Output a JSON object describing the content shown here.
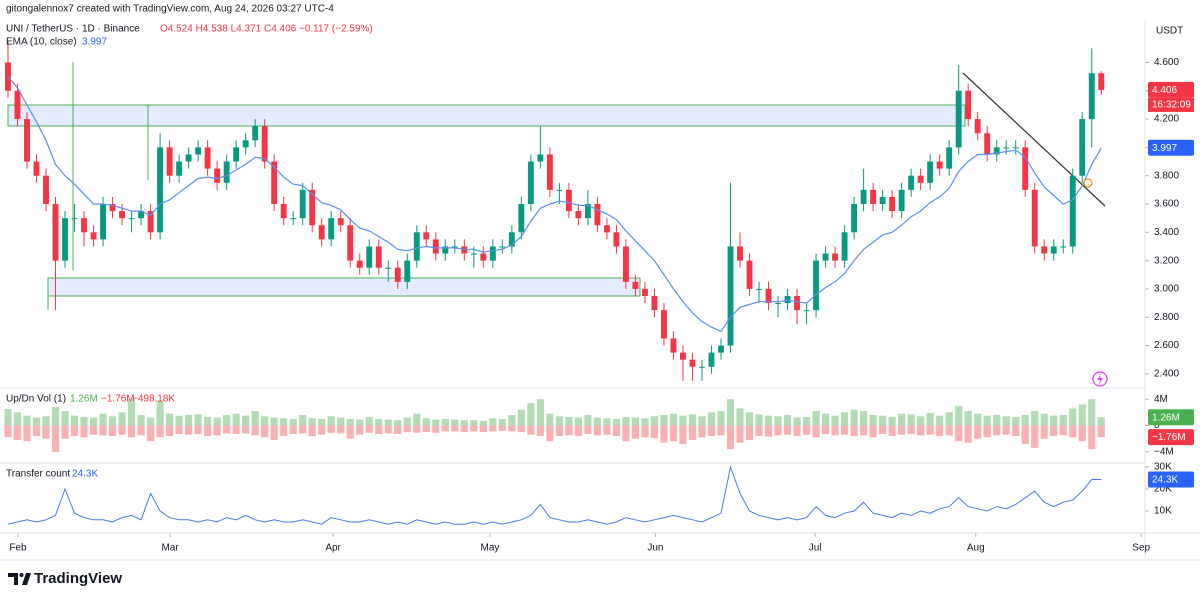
{
  "header": {
    "author_line": "gitongalennox7 created with TradingView.com, Aug 24, 2026 03:27 UTC-4",
    "symbol": "UNI / TetherUS · 1D · Binance",
    "ohlc": "O4.524 H4.538 L4.371 C4.406 −0.117 (−2.59%)",
    "ema_name": "EMA (10, close)",
    "ema_value": "3.997"
  },
  "footer": {
    "brand": "TradingView"
  },
  "chart_data": [
    {
      "type": "candlestick",
      "currency": "USDT",
      "up_color": "#089981",
      "down_color": "#f23645",
      "ema_color": "#5b8ff0",
      "xlim": [
        -0.84,
        119.6
      ],
      "xticks": [
        {
          "value": 1.05,
          "label": "Feb"
        },
        {
          "value": 17.05,
          "label": "Mar"
        },
        {
          "value": 34.2,
          "label": "Apr"
        },
        {
          "value": 50.7,
          "label": "May"
        },
        {
          "value": 68.1,
          "label": "Jun"
        },
        {
          "value": 84.9,
          "label": "Jul"
        },
        {
          "value": 101.8,
          "label": "Aug"
        },
        {
          "value": 119.2,
          "label": "Sep"
        }
      ],
      "ylim": [
        2.3,
        4.9
      ],
      "yticks": [
        {
          "value": 2.4,
          "label": "2.400"
        },
        {
          "value": 2.6,
          "label": "2.600"
        },
        {
          "value": 2.8,
          "label": "2.800"
        },
        {
          "value": 3.0,
          "label": "3.000"
        },
        {
          "value": 3.2,
          "label": "3.200"
        },
        {
          "value": 3.4,
          "label": "3.400"
        },
        {
          "value": 3.6,
          "label": "3.600"
        },
        {
          "value": 3.8,
          "label": "3.800"
        },
        {
          "value": 4.0,
          "label": "4.000"
        },
        {
          "value": 4.2,
          "label": "4.200"
        },
        {
          "value": 4.4,
          "label": "4.400"
        },
        {
          "value": 4.6,
          "label": "4.600"
        }
      ],
      "last_price": {
        "value": 4.406,
        "label": "4.406"
      },
      "countdown": "16:32:09",
      "ema_tag": {
        "value": 3.997,
        "label": "3.997"
      },
      "candles": [
        [
          4.6,
          4.75,
          4.35,
          4.4
        ],
        [
          4.4,
          4.45,
          4.15,
          4.2
        ],
        [
          4.2,
          4.25,
          3.85,
          3.9
        ],
        [
          3.9,
          3.95,
          3.75,
          3.8
        ],
        [
          3.8,
          3.85,
          3.55,
          3.6
        ],
        [
          3.6,
          3.65,
          2.85,
          3.2
        ],
        [
          3.2,
          3.55,
          3.15,
          3.5
        ],
        [
          3.5,
          3.6,
          3.4,
          3.5
        ],
        [
          3.5,
          3.55,
          3.3,
          3.4
        ],
        [
          3.4,
          3.45,
          3.3,
          3.35
        ],
        [
          3.35,
          3.65,
          3.3,
          3.6
        ],
        [
          3.6,
          3.65,
          3.5,
          3.55
        ],
        [
          3.55,
          3.6,
          3.45,
          3.5
        ],
        [
          3.5,
          3.55,
          3.4,
          3.5
        ],
        [
          3.5,
          3.6,
          3.45,
          3.55
        ],
        [
          3.55,
          3.6,
          3.35,
          3.4
        ],
        [
          3.4,
          4.1,
          3.35,
          4.0
        ],
        [
          4.0,
          4.05,
          3.75,
          3.8
        ],
        [
          3.8,
          3.95,
          3.75,
          3.9
        ],
        [
          3.9,
          4.0,
          3.85,
          3.95
        ],
        [
          3.95,
          4.05,
          3.9,
          4.0
        ],
        [
          4.0,
          4.05,
          3.8,
          3.85
        ],
        [
          3.85,
          3.9,
          3.7,
          3.75
        ],
        [
          3.75,
          3.95,
          3.7,
          3.9
        ],
        [
          3.9,
          4.05,
          3.85,
          4.0
        ],
        [
          4.0,
          4.1,
          3.95,
          4.05
        ],
        [
          4.05,
          4.2,
          4.0,
          4.15
        ],
        [
          4.15,
          4.2,
          3.85,
          3.9
        ],
        [
          3.9,
          3.95,
          3.55,
          3.6
        ],
        [
          3.6,
          3.65,
          3.45,
          3.5
        ],
        [
          3.5,
          3.55,
          3.45,
          3.5
        ],
        [
          3.5,
          3.75,
          3.45,
          3.7
        ],
        [
          3.7,
          3.75,
          3.4,
          3.45
        ],
        [
          3.45,
          3.5,
          3.3,
          3.35
        ],
        [
          3.35,
          3.55,
          3.3,
          3.5
        ],
        [
          3.5,
          3.55,
          3.4,
          3.45
        ],
        [
          3.45,
          3.5,
          3.15,
          3.2
        ],
        [
          3.2,
          3.25,
          3.1,
          3.15
        ],
        [
          3.15,
          3.35,
          3.1,
          3.3
        ],
        [
          3.3,
          3.35,
          3.1,
          3.15
        ],
        [
          3.15,
          3.2,
          3.05,
          3.15
        ],
        [
          3.15,
          3.2,
          3.0,
          3.05
        ],
        [
          3.05,
          3.25,
          3.0,
          3.2
        ],
        [
          3.2,
          3.45,
          3.15,
          3.4
        ],
        [
          3.4,
          3.45,
          3.3,
          3.35
        ],
        [
          3.35,
          3.4,
          3.2,
          3.25
        ],
        [
          3.25,
          3.35,
          3.2,
          3.3
        ],
        [
          3.3,
          3.35,
          3.25,
          3.3
        ],
        [
          3.3,
          3.35,
          3.2,
          3.25
        ],
        [
          3.25,
          3.3,
          3.15,
          3.25
        ],
        [
          3.25,
          3.3,
          3.15,
          3.2
        ],
        [
          3.2,
          3.35,
          3.15,
          3.3
        ],
        [
          3.3,
          3.35,
          3.25,
          3.3
        ],
        [
          3.3,
          3.45,
          3.25,
          3.4
        ],
        [
          3.4,
          3.65,
          3.35,
          3.6
        ],
        [
          3.6,
          3.95,
          3.55,
          3.9
        ],
        [
          3.9,
          4.15,
          3.85,
          3.95
        ],
        [
          3.95,
          4.0,
          3.65,
          3.7
        ],
        [
          3.7,
          3.75,
          3.6,
          3.7
        ],
        [
          3.7,
          3.75,
          3.5,
          3.55
        ],
        [
          3.55,
          3.6,
          3.45,
          3.5
        ],
        [
          3.5,
          3.7,
          3.45,
          3.6
        ],
        [
          3.6,
          3.65,
          3.4,
          3.45
        ],
        [
          3.45,
          3.5,
          3.35,
          3.4
        ],
        [
          3.4,
          3.45,
          3.25,
          3.3
        ],
        [
          3.3,
          3.35,
          3.0,
          3.05
        ],
        [
          3.05,
          3.1,
          2.95,
          3.0
        ],
        [
          3.0,
          3.05,
          2.9,
          2.95
        ],
        [
          2.95,
          3.0,
          2.8,
          2.85
        ],
        [
          2.85,
          2.9,
          2.6,
          2.65
        ],
        [
          2.65,
          2.7,
          2.5,
          2.55
        ],
        [
          2.55,
          2.6,
          2.35,
          2.5
        ],
        [
          2.5,
          2.55,
          2.35,
          2.45
        ],
        [
          2.45,
          2.5,
          2.35,
          2.45
        ],
        [
          2.45,
          2.6,
          2.4,
          2.55
        ],
        [
          2.55,
          2.65,
          2.5,
          2.6
        ],
        [
          2.6,
          3.75,
          2.55,
          3.3
        ],
        [
          3.3,
          3.4,
          3.15,
          3.2
        ],
        [
          3.2,
          3.25,
          2.95,
          3.0
        ],
        [
          3.0,
          3.05,
          2.9,
          3.0
        ],
        [
          3.0,
          3.05,
          2.85,
          2.9
        ],
        [
          2.9,
          2.95,
          2.8,
          2.9
        ],
        [
          2.9,
          3.0,
          2.85,
          2.95
        ],
        [
          2.95,
          3.0,
          2.75,
          2.85
        ],
        [
          2.85,
          2.9,
          2.75,
          2.85
        ],
        [
          2.85,
          3.25,
          2.8,
          3.2
        ],
        [
          3.2,
          3.3,
          3.15,
          3.25
        ],
        [
          3.25,
          3.3,
          3.15,
          3.2
        ],
        [
          3.2,
          3.45,
          3.15,
          3.4
        ],
        [
          3.4,
          3.65,
          3.35,
          3.6
        ],
        [
          3.6,
          3.85,
          3.55,
          3.7
        ],
        [
          3.7,
          3.75,
          3.55,
          3.6
        ],
        [
          3.6,
          3.7,
          3.55,
          3.65
        ],
        [
          3.65,
          3.7,
          3.5,
          3.55
        ],
        [
          3.55,
          3.75,
          3.5,
          3.7
        ],
        [
          3.7,
          3.85,
          3.65,
          3.8
        ],
        [
          3.8,
          3.85,
          3.7,
          3.75
        ],
        [
          3.75,
          3.95,
          3.7,
          3.9
        ],
        [
          3.9,
          3.95,
          3.8,
          3.85
        ],
        [
          3.85,
          4.05,
          3.8,
          4.0
        ],
        [
          4.0,
          4.58,
          3.95,
          4.4
        ],
        [
          4.4,
          4.45,
          4.15,
          4.2
        ],
        [
          4.2,
          4.25,
          4.05,
          4.1
        ],
        [
          4.1,
          4.15,
          3.9,
          3.95
        ],
        [
          3.95,
          4.05,
          3.9,
          4.0
        ],
        [
          4.0,
          4.05,
          3.95,
          4.0
        ],
        [
          4.0,
          4.05,
          3.95,
          4.0
        ],
        [
          4.0,
          4.05,
          3.65,
          3.7
        ],
        [
          3.7,
          3.75,
          3.25,
          3.3
        ],
        [
          3.3,
          3.35,
          3.2,
          3.25
        ],
        [
          3.25,
          3.35,
          3.2,
          3.3
        ],
        [
          3.3,
          3.35,
          3.25,
          3.3
        ],
        [
          3.3,
          3.85,
          3.25,
          3.8
        ],
        [
          3.8,
          4.25,
          3.75,
          4.2
        ],
        [
          4.2,
          4.7,
          4.0,
          4.524
        ],
        [
          4.524,
          4.538,
          4.371,
          4.406
        ]
      ],
      "ema": [
        4.5,
        4.42,
        4.3,
        4.18,
        4.05,
        3.88,
        3.8,
        3.74,
        3.67,
        3.6,
        3.6,
        3.59,
        3.57,
        3.55,
        3.55,
        3.52,
        3.6,
        3.63,
        3.68,
        3.73,
        3.78,
        3.79,
        3.78,
        3.8,
        3.84,
        3.88,
        3.93,
        3.92,
        3.86,
        3.79,
        3.74,
        3.73,
        3.67,
        3.61,
        3.59,
        3.56,
        3.49,
        3.43,
        3.41,
        3.37,
        3.33,
        3.28,
        3.27,
        3.29,
        3.3,
        3.29,
        3.29,
        3.29,
        3.28,
        3.28,
        3.26,
        3.27,
        3.28,
        3.31,
        3.37,
        3.48,
        3.57,
        3.6,
        3.62,
        3.61,
        3.59,
        3.59,
        3.56,
        3.53,
        3.49,
        3.41,
        3.34,
        3.27,
        3.2,
        3.1,
        3.0,
        2.91,
        2.83,
        2.77,
        2.73,
        2.7,
        2.8,
        2.87,
        2.89,
        2.91,
        2.91,
        2.91,
        2.92,
        2.91,
        2.9,
        2.96,
        3.01,
        3.05,
        3.11,
        3.2,
        3.28,
        3.33,
        3.38,
        3.4,
        3.45,
        3.51,
        3.55,
        3.61,
        3.65,
        3.71,
        3.83,
        3.9,
        3.95,
        3.95,
        3.96,
        3.97,
        3.98,
        3.93,
        3.82,
        3.72,
        3.66,
        3.6,
        3.63,
        3.73,
        3.88,
        3.997
      ]
    },
    {
      "type": "bar",
      "title": "Up/Dn Vol (1)",
      "legend_values": [
        "1.26M",
        "−1.76M",
        "−498.18K"
      ],
      "up_color": "#a5d6a7",
      "down_color": "#faa1a4",
      "ylim": [
        -5.7,
        5.7
      ],
      "yticks": [
        {
          "value": 4,
          "label": "4M"
        },
        0,
        {
          "value": -4,
          "label": "−4M"
        }
      ],
      "up_tag": {
        "value": 1.26,
        "label": "1.26M"
      },
      "down_tag": {
        "value": -1.76,
        "label": "−1.76M"
      },
      "up_values": [
        2.5,
        2.0,
        1.5,
        1.2,
        1.4,
        2.8,
        2.2,
        1.5,
        1.3,
        1.2,
        1.8,
        1.4,
        2.0,
        4.0,
        1.6,
        1.2,
        3.8,
        1.8,
        1.5,
        1.6,
        1.7,
        1.3,
        1.2,
        1.6,
        1.8,
        1.5,
        2.2,
        1.4,
        1.2,
        1.1,
        1.0,
        1.6,
        1.1,
        1.0,
        1.4,
        1.2,
        1.0,
        0.9,
        1.3,
        1.0,
        0.9,
        0.8,
        1.2,
        1.8,
        1.1,
        0.9,
        1.0,
        0.9,
        0.8,
        0.8,
        0.7,
        1.1,
        1.0,
        1.6,
        2.4,
        3.4,
        4.0,
        1.8,
        1.4,
        1.3,
        1.2,
        1.6,
        1.2,
        1.1,
        1.0,
        1.3,
        1.2,
        1.1,
        1.4,
        1.6,
        1.8,
        1.5,
        1.7,
        1.4,
        2.0,
        2.2,
        4.0,
        2.6,
        2.0,
        1.7,
        1.5,
        1.4,
        1.6,
        1.2,
        1.3,
        2.2,
        1.8,
        1.5,
        2.0,
        2.4,
        2.2,
        1.6,
        1.5,
        1.3,
        1.8,
        1.7,
        1.4,
        1.9,
        1.5,
        2.0,
        3.0,
        2.2,
        1.8,
        1.5,
        1.6,
        1.4,
        1.3,
        1.6,
        2.2,
        1.8,
        1.5,
        1.6,
        2.6,
        3.2,
        4.0,
        1.26
      ],
      "down_values": [
        -1.8,
        -2.2,
        -2.4,
        -1.6,
        -2.0,
        -4.0,
        -2.0,
        -1.6,
        -1.8,
        -1.4,
        -1.5,
        -1.6,
        -1.4,
        -1.8,
        -1.5,
        -2.4,
        -1.8,
        -1.6,
        -1.3,
        -1.4,
        -1.3,
        -1.6,
        -1.5,
        -1.2,
        -1.3,
        -1.2,
        -1.5,
        -1.8,
        -2.2,
        -1.6,
        -1.3,
        -1.2,
        -1.6,
        -1.4,
        -1.1,
        -1.2,
        -2.0,
        -1.4,
        -1.1,
        -1.3,
        -1.2,
        -1.3,
        -1.0,
        -1.1,
        -1.0,
        -1.1,
        -0.9,
        -0.9,
        -1.0,
        -0.9,
        -1.0,
        -0.9,
        -0.8,
        -0.9,
        -1.0,
        -1.4,
        -1.6,
        -2.4,
        -1.6,
        -1.5,
        -1.6,
        -1.3,
        -1.5,
        -1.4,
        -1.6,
        -2.4,
        -2.0,
        -1.8,
        -1.9,
        -2.6,
        -2.4,
        -2.8,
        -2.2,
        -1.8,
        -1.6,
        -1.5,
        -3.6,
        -2.6,
        -2.2,
        -1.6,
        -1.7,
        -1.5,
        -1.4,
        -1.6,
        -1.4,
        -1.8,
        -1.3,
        -1.5,
        -1.4,
        -1.6,
        -1.5,
        -1.8,
        -1.3,
        -1.6,
        -1.4,
        -1.3,
        -1.5,
        -1.4,
        -1.6,
        -1.5,
        -2.4,
        -2.6,
        -2.0,
        -1.8,
        -1.5,
        -1.4,
        -1.6,
        -2.8,
        -3.4,
        -2.0,
        -1.6,
        -1.5,
        -1.8,
        -2.4,
        -3.6,
        -1.76
      ]
    },
    {
      "type": "line",
      "title": "Transfer count",
      "legend_value": "24.3K",
      "color": "#4a78e8",
      "ylim": [
        0,
        31.8
      ],
      "yticks": [
        {
          "value": 30,
          "label": "30K"
        },
        {
          "value": 20,
          "label": "20K"
        },
        {
          "value": 10,
          "label": "10K"
        }
      ],
      "tag": {
        "value": 24.3,
        "label": "24.3K"
      },
      "values": [
        4,
        5,
        6,
        5,
        6,
        8,
        20,
        9,
        7,
        6,
        6,
        5,
        7,
        8,
        6,
        18,
        10,
        7,
        6,
        6,
        5,
        6,
        5,
        7,
        6,
        8,
        6,
        5,
        6,
        5,
        5,
        6,
        5,
        4,
        7,
        6,
        5,
        5,
        6,
        5,
        4,
        5,
        4,
        6,
        5,
        4,
        5,
        4,
        4,
        5,
        4,
        5,
        4,
        5,
        6,
        8,
        13,
        7,
        6,
        5,
        5,
        6,
        5,
        4,
        5,
        7,
        6,
        5,
        6,
        7,
        8,
        7,
        6,
        5,
        7,
        9,
        30,
        18,
        10,
        8,
        7,
        6,
        7,
        6,
        7,
        12,
        8,
        7,
        9,
        10,
        14,
        9,
        8,
        7,
        9,
        8,
        10,
        9,
        11,
        12,
        16,
        12,
        11,
        10,
        12,
        11,
        13,
        16,
        19,
        14,
        12,
        14,
        15,
        19,
        24.3,
        24.3
      ]
    }
  ]
}
